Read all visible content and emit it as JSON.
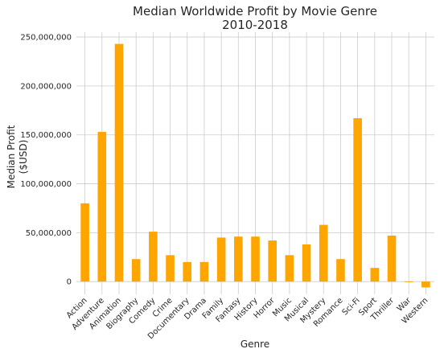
{
  "chart_data": {
    "type": "bar",
    "title": "Median Worldwide Profit by Movie Genre",
    "subtitle": "2010-2018",
    "xlabel": "Genre",
    "ylabel": "Median Profit",
    "ylabel_unit": "($USD)",
    "color": "#ffa500",
    "grid": true,
    "ylim": [
      -13000000,
      255000000
    ],
    "yticks": [
      0,
      50000000,
      100000000,
      150000000,
      200000000,
      250000000
    ],
    "ytick_labels": [
      "0",
      "50,000,000",
      "100,000,000",
      "150,000,000",
      "200,000,000",
      "250,000,000"
    ],
    "categories": [
      "Action",
      "Adventure",
      "Animation",
      "Biography",
      "Comedy",
      "Crime",
      "Documentary",
      "Drama",
      "Family",
      "Fantasy",
      "History",
      "Horror",
      "Music",
      "Musical",
      "Mystery",
      "Romance",
      "Sci-Fi",
      "Sport",
      "Thriller",
      "War",
      "Western"
    ],
    "values": [
      80000000,
      153000000,
      243000000,
      23000000,
      51000000,
      27000000,
      20000000,
      20000000,
      45000000,
      46000000,
      46000000,
      42000000,
      27000000,
      38000000,
      58000000,
      23000000,
      167000000,
      14000000,
      47000000,
      -500000,
      -6000000
    ]
  }
}
